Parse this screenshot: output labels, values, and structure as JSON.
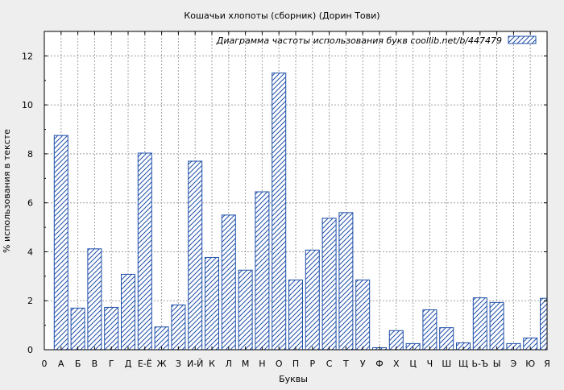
{
  "chart_data": {
    "type": "bar",
    "title": "Кошачьи хлопоты (сборник) (Дорин Тови)",
    "xlabel": "Буквы",
    "ylabel": "% использования в тексте",
    "legend": {
      "label": "Диаграмма частоты использования букв  coollib.net/b/447479",
      "position": "top-right"
    },
    "x_tick_labels": [
      "0",
      "А",
      "Б",
      "В",
      "Г",
      "Д",
      "Е-Ё",
      "Ж",
      "З",
      "И-Й",
      "К",
      "Л",
      "М",
      "Н",
      "О",
      "П",
      "Р",
      "С",
      "Т",
      "У",
      "Ф",
      "Х",
      "Ц",
      "Ч",
      "Ш",
      "Щ",
      "Ь-Ъ",
      "Ы",
      "Э",
      "Ю",
      "Я"
    ],
    "categories": [
      "А",
      "Б",
      "В",
      "Г",
      "Д",
      "Е-Ё",
      "Ж",
      "З",
      "И-Й",
      "К",
      "Л",
      "М",
      "Н",
      "О",
      "П",
      "Р",
      "С",
      "Т",
      "У",
      "Ф",
      "Х",
      "Ц",
      "Ч",
      "Ш",
      "Щ",
      "Ь-Ъ",
      "Ы",
      "Э",
      "Ю",
      "Я"
    ],
    "values": [
      8.75,
      1.7,
      4.12,
      1.73,
      3.08,
      8.03,
      0.93,
      1.83,
      7.7,
      3.77,
      5.5,
      3.25,
      6.45,
      11.3,
      2.85,
      4.07,
      5.37,
      5.6,
      2.85,
      0.08,
      0.78,
      0.25,
      1.63,
      0.9,
      0.28,
      2.12,
      1.93,
      0.25,
      0.48,
      2.1
    ],
    "ylim": [
      0,
      13
    ],
    "yticks": [
      0,
      2,
      4,
      6,
      8,
      10,
      12
    ],
    "grid": true,
    "bar_color": "#1f4fa8",
    "bar_pattern": "diagonal-hatch"
  }
}
